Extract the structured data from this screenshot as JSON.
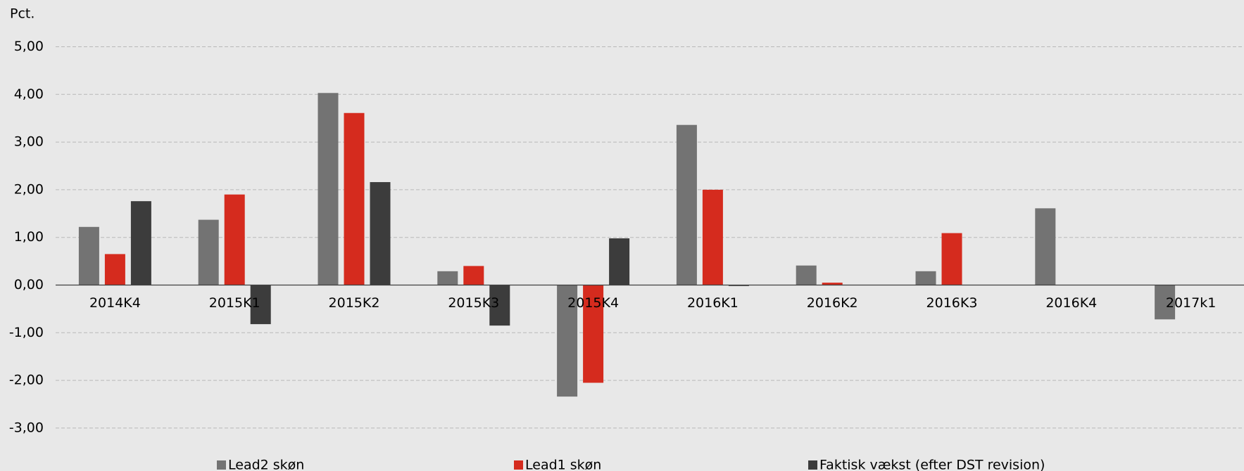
{
  "chart_data": {
    "type": "bar",
    "y_label": "Pct.",
    "categories": [
      "2014K4",
      "2015K1",
      "2015K2",
      "2015K3",
      "2015K4",
      "2016K1",
      "2016K2",
      "2016K3",
      "2016K4",
      "2017k1"
    ],
    "series": [
      {
        "name": "Lead2 skøn",
        "color": "#737373",
        "values": [
          1.22,
          1.37,
          4.03,
          0.29,
          -2.34,
          3.36,
          0.41,
          0.29,
          1.61,
          -0.72
        ]
      },
      {
        "name": "Lead1 skøn",
        "color": "#d52b1e",
        "values": [
          0.65,
          1.9,
          3.61,
          0.4,
          -2.05,
          2.0,
          0.05,
          1.09,
          null,
          null
        ]
      },
      {
        "name": "Faktisk vækst (efter DST revision)",
        "color": "#3c3c3c",
        "values": [
          1.76,
          -0.82,
          2.16,
          -0.85,
          0.98,
          -0.02,
          null,
          null,
          null,
          null
        ]
      }
    ],
    "ylim": [
      -3.4,
      5.0
    ],
    "yticks": [
      {
        "value": 5,
        "label": "5,00"
      },
      {
        "value": 4,
        "label": "4,00"
      },
      {
        "value": 3,
        "label": "3,00"
      },
      {
        "value": 2,
        "label": "2,00"
      },
      {
        "value": 1,
        "label": "1,00"
      },
      {
        "value": 0,
        "label": "0,00"
      },
      {
        "value": -1,
        "label": "-1,00"
      },
      {
        "value": -2,
        "label": "-2,00"
      },
      {
        "value": -3,
        "label": "-3,00"
      }
    ],
    "grid": true,
    "legend": "bottom"
  }
}
